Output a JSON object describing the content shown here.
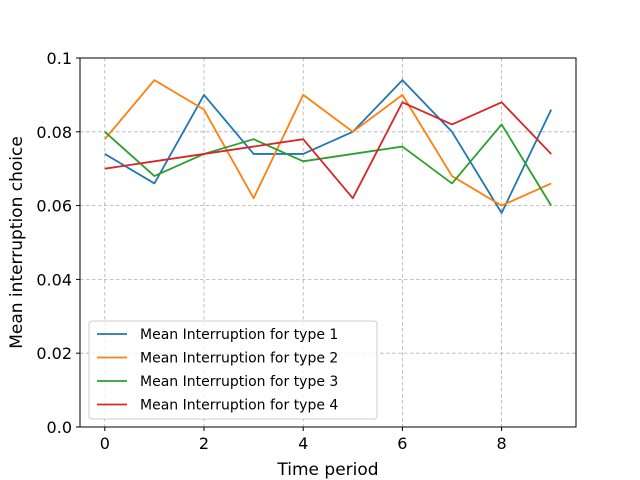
{
  "chart_data": {
    "type": "line",
    "title": "",
    "xlabel": "Time period",
    "ylabel": "Mean interruption choice",
    "xlim": [
      -0.5,
      9.5
    ],
    "ylim": [
      0.0,
      0.1
    ],
    "xticks": [
      0,
      2,
      4,
      6,
      8
    ],
    "xtick_labels": [
      "0",
      "2",
      "4",
      "6",
      "8"
    ],
    "yticks": [
      0.0,
      0.02,
      0.04,
      0.06,
      0.08,
      0.1
    ],
    "ytick_labels": [
      "0.0",
      "0.02",
      "0.04",
      "0.06",
      "0.08",
      "0.1"
    ],
    "grid": true,
    "legend_position": "lower-left",
    "x": [
      0,
      1,
      2,
      3,
      4,
      5,
      6,
      7,
      8,
      9
    ],
    "series": [
      {
        "name": "Mean Interruption for type 1",
        "color": "#1f77b4",
        "values": [
          0.074,
          0.066,
          0.09,
          0.074,
          0.074,
          0.08,
          0.094,
          0.08,
          0.058,
          0.086
        ]
      },
      {
        "name": "Mean Interruption for type 2",
        "color": "#ff7f0e",
        "values": [
          0.078,
          0.094,
          0.086,
          0.062,
          0.09,
          0.08,
          0.09,
          0.068,
          0.06,
          0.066
        ]
      },
      {
        "name": "Mean Interruption for type 3",
        "color": "#2ca02c",
        "values": [
          0.08,
          0.068,
          0.074,
          0.078,
          0.072,
          0.074,
          0.076,
          0.066,
          0.082,
          0.06
        ]
      },
      {
        "name": "Mean Interruption for type 4",
        "color": "#d62728",
        "values": [
          0.07,
          0.072,
          0.074,
          0.076,
          0.078,
          0.062,
          0.088,
          0.082,
          0.088,
          0.074
        ]
      }
    ]
  }
}
